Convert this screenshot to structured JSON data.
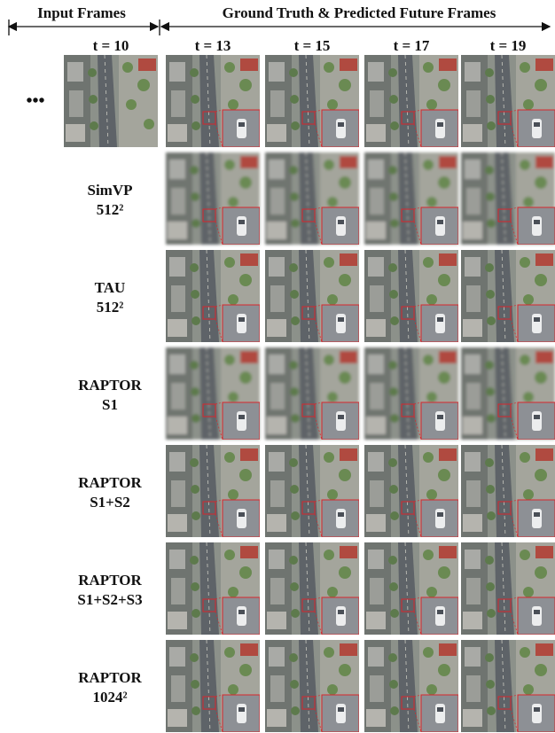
{
  "header": {
    "input": "Input Frames",
    "output": "Ground Truth & Predicted Future Frames"
  },
  "columns": [
    "t = 10",
    "t = 13",
    "t = 15",
    "t = 17",
    "t = 19"
  ],
  "ellipsis": "•••",
  "rows": [
    {
      "lines": [
        "SimVP",
        "512²"
      ]
    },
    {
      "lines": [
        "TAU",
        "512²"
      ]
    },
    {
      "lines": [
        "RAPTOR",
        "S1"
      ]
    },
    {
      "lines": [
        "RAPTOR",
        "S1+S2"
      ]
    },
    {
      "lines": [
        "RAPTOR",
        "S1+S2+S3"
      ]
    },
    {
      "lines": [
        "RAPTOR",
        "1024²"
      ]
    }
  ]
}
